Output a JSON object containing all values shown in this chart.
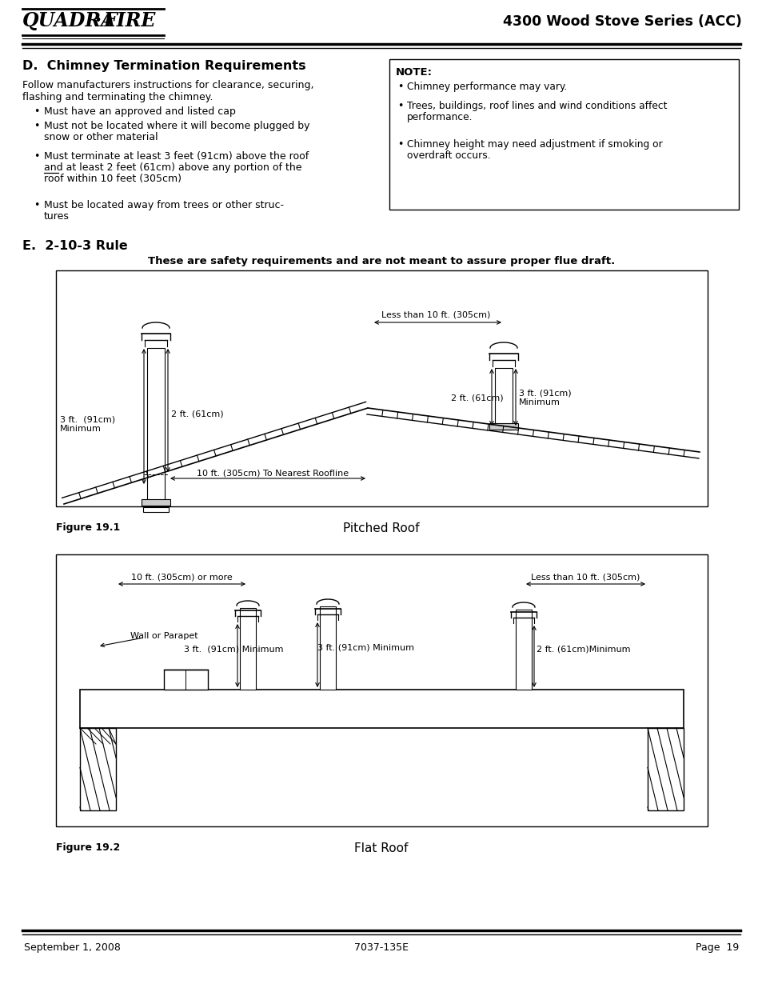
{
  "page_title": "4300 Wood Stove Series (ACC)",
  "logo_text": "QUADRA·FIRE",
  "section_d_title": "D.  Chimney Termination Requirements",
  "bullets_left": [
    "Must have an approved and listed cap",
    "Must not be located where it will become plugged by\nsnow or other material",
    "Must terminate at least 3 feet (91cm) above the roof\nand at least 2 feet (61cm) above any portion of the\nroof within 10 feet (305cm)",
    "Must be located away from trees or other struc-\ntures"
  ],
  "note_title": "NOTE:",
  "note_bullets": [
    "Chimney performance may vary.",
    "Trees, buildings, roof lines and wind conditions affect\nperformance.",
    "Chimney height may need adjustment if smoking or\noverdraft occurs."
  ],
  "section_e_title": "E.  2-10-3 Rule",
  "safety_note": "These are safety requirements and are not meant to assure proper flue draft.",
  "fig1_label": "Figure 19.1",
  "fig1_caption": "Pitched Roof",
  "fig2_label": "Figure 19.2",
  "fig2_caption": "Flat Roof",
  "footer_left": "September 1, 2008",
  "footer_center": "7037-135E",
  "footer_right": "Page  19",
  "bg_color": "#ffffff",
  "text_color": "#000000"
}
